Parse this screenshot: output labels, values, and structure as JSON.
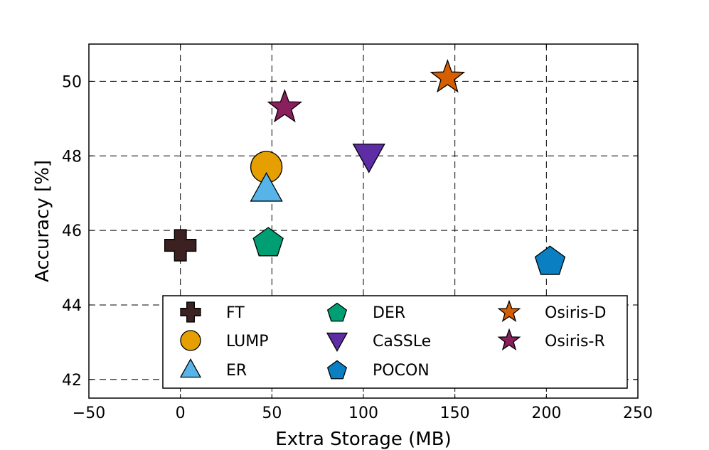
{
  "chart_data": {
    "type": "scatter",
    "title": "",
    "xlabel": "Extra Storage (MB)",
    "ylabel": "Accuracy [%]",
    "xlim": [
      -50,
      250
    ],
    "ylim": [
      41.5,
      51
    ],
    "xticks": [
      -50,
      0,
      50,
      100,
      150,
      200,
      250
    ],
    "yticks": [
      42,
      44,
      46,
      48,
      50
    ],
    "xtick_labels": [
      "−50",
      "0",
      "50",
      "100",
      "150",
      "200",
      "250"
    ],
    "ytick_labels": [
      "42",
      "44",
      "46",
      "48",
      "50"
    ],
    "grid": true,
    "legend_position": "lower-center",
    "series": [
      {
        "name": "FT",
        "x": 0,
        "y": 45.6,
        "marker": "plus",
        "color": "#3b2121"
      },
      {
        "name": "LUMP",
        "x": 47,
        "y": 47.7,
        "marker": "circle",
        "color": "#e69f00"
      },
      {
        "name": "ER",
        "x": 47,
        "y": 47.1,
        "marker": "triangle-up",
        "color": "#56b4e9"
      },
      {
        "name": "DER",
        "x": 48,
        "y": 45.7,
        "marker": "pentagon",
        "color": "#009e73"
      },
      {
        "name": "CaSSLe",
        "x": 103,
        "y": 48.0,
        "marker": "triangle-down",
        "color": "#5e2ca5"
      },
      {
        "name": "POCON",
        "x": 202,
        "y": 45.2,
        "marker": "pentagon",
        "color": "#0a7fc2"
      },
      {
        "name": "Osiris-D",
        "x": 146,
        "y": 50.1,
        "marker": "star",
        "color": "#d55e00"
      },
      {
        "name": "Osiris-R",
        "x": 57,
        "y": 49.3,
        "marker": "star",
        "color": "#8a1f5e"
      }
    ]
  }
}
